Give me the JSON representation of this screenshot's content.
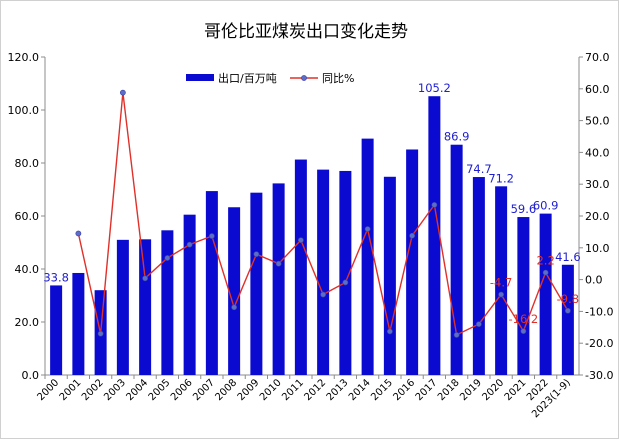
{
  "chart_data": {
    "type": "bar+line",
    "title": "哥伦比亚煤炭出口变化走势",
    "categories": [
      "2000",
      "2001",
      "2002",
      "2003",
      "2004",
      "2005",
      "2006",
      "2007",
      "2008",
      "2009",
      "2010",
      "2011",
      "2012",
      "2013",
      "2014",
      "2015",
      "2016",
      "2017",
      "2018",
      "2019",
      "2020",
      "2021",
      "2022",
      "2023(1-9)"
    ],
    "series": [
      {
        "name": "出口/百万吨",
        "type": "bar",
        "axis": "left",
        "color": "#0a0ad0",
        "values": [
          33.8,
          38.5,
          32.0,
          51.0,
          51.2,
          54.6,
          60.5,
          69.4,
          63.3,
          68.8,
          72.3,
          81.3,
          77.5,
          77.0,
          89.2,
          74.8,
          85.1,
          105.2,
          86.9,
          74.7,
          71.2,
          59.6,
          60.9,
          41.6
        ]
      },
      {
        "name": "同比%",
        "type": "line",
        "axis": "right",
        "color": "#e0302a",
        "values": [
          null,
          14.5,
          -17.0,
          58.8,
          0.4,
          6.8,
          11.0,
          13.7,
          -8.7,
          8.0,
          5.0,
          12.4,
          -4.7,
          -0.9,
          15.9,
          -16.3,
          13.8,
          23.5,
          -17.4,
          -14.0,
          -4.7,
          -16.2,
          2.2,
          -9.8
        ]
      }
    ],
    "bar_labels": [
      {
        "category": "2000",
        "text": "33.8"
      },
      {
        "category": "2017",
        "text": "105.2"
      },
      {
        "category": "2018",
        "text": "86.9"
      },
      {
        "category": "2019",
        "text": "74.7"
      },
      {
        "category": "2020",
        "text": "71.2"
      },
      {
        "category": "2021",
        "text": "59.6"
      },
      {
        "category": "2022",
        "text": "60.9"
      },
      {
        "category": "2023(1-9)",
        "text": "41.6"
      }
    ],
    "line_labels": [
      {
        "category": "2020",
        "text": "-4.7"
      },
      {
        "category": "2021",
        "text": "-16.2"
      },
      {
        "category": "2022",
        "text": "2.2"
      },
      {
        "category": "2023(1-9)",
        "text": "-9.8"
      }
    ],
    "y_left": {
      "min": 0,
      "max": 120,
      "step": 20,
      "tick_labels": [
        "0.0",
        "20.0",
        "40.0",
        "60.0",
        "80.0",
        "100.0",
        "120.0"
      ]
    },
    "y_right": {
      "min": -30,
      "max": 70,
      "step": 10,
      "tick_labels": [
        "-30.0",
        "-20.0",
        "-10.0",
        "0.0",
        "10.0",
        "20.0",
        "30.0",
        "40.0",
        "50.0",
        "60.0",
        "70.0"
      ]
    },
    "legend": {
      "placement": "top-center",
      "items": [
        "出口/百万吨",
        "同比%"
      ]
    },
    "grid": false
  }
}
